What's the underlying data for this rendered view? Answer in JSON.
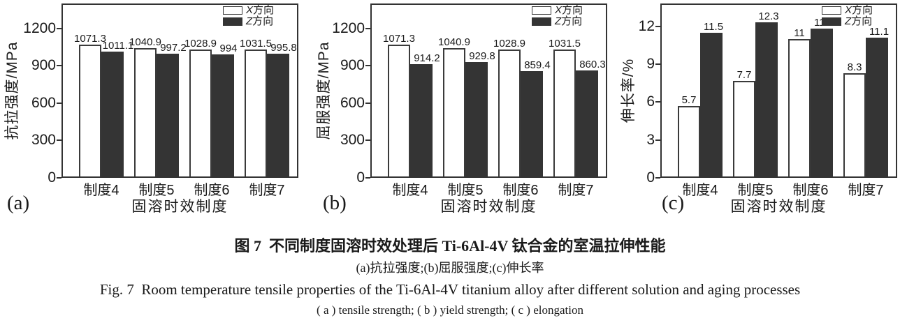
{
  "chart_data": [
    {
      "panel_label": "(a)",
      "type": "bar",
      "title": "",
      "ylabel": "抗拉强度/MPa",
      "xlabel": "固溶时效制度",
      "categories": [
        "制度4",
        "制度5",
        "制度6",
        "制度7"
      ],
      "series": [
        {
          "name": "X方向",
          "fill": "#ffffff",
          "values": [
            1071.3,
            1040.9,
            1028.9,
            1031.5
          ]
        },
        {
          "name": "Z方向",
          "fill": "#343434",
          "values": [
            1011.1,
            997.2,
            994,
            995.8
          ]
        }
      ],
      "yticks": [
        0,
        300,
        600,
        900,
        1200
      ],
      "ylim": [
        0,
        1400
      ],
      "grid": false,
      "legend_position": "top-right-inside"
    },
    {
      "panel_label": "(b)",
      "type": "bar",
      "title": "",
      "ylabel": "屈服强度/MPa",
      "xlabel": "固溶时效制度",
      "categories": [
        "制度4",
        "制度5",
        "制度6",
        "制度7"
      ],
      "series": [
        {
          "name": "X方向",
          "fill": "#ffffff",
          "values": [
            1071.3,
            1040.9,
            1028.9,
            1031.5
          ]
        },
        {
          "name": "Z方向",
          "fill": "#343434",
          "values": [
            914.2,
            929.8,
            859.4,
            860.3
          ]
        }
      ],
      "yticks": [
        0,
        300,
        600,
        900,
        1200
      ],
      "ylim": [
        0,
        1400
      ],
      "grid": false,
      "legend_position": "top-right-inside"
    },
    {
      "panel_label": "(c)",
      "type": "bar",
      "title": "",
      "ylabel": "伸长率/%",
      "xlabel": "固溶时效制度",
      "categories": [
        "制度4",
        "制度5",
        "制度6",
        "制度7"
      ],
      "series": [
        {
          "name": "X方向",
          "fill": "#ffffff",
          "values": [
            5.7,
            7.7,
            11,
            8.3
          ]
        },
        {
          "name": "Z方向",
          "fill": "#343434",
          "values": [
            11.5,
            12.3,
            11.8,
            11.1
          ]
        }
      ],
      "yticks": [
        0,
        3,
        6,
        9,
        12
      ],
      "ylim": [
        0,
        13.8
      ],
      "grid": false,
      "legend_position": "top-right-inside"
    }
  ],
  "caption": {
    "zh_title": "图 7  不同制度固溶时效处理后 Ti-6Al-4V 钛合金的室温拉伸性能",
    "zh_sub": "(a)抗拉强度;(b)屈服强度;(c)伸长率",
    "en_title": "Fig. 7  Room temperature tensile properties of the Ti-6Al-4V titanium alloy after different solution and aging processes",
    "en_sub": "( a ) tensile strength; ( b ) yield strength; ( c ) elongation"
  },
  "colors": {
    "bar_light": "#ffffff",
    "bar_dark": "#343434",
    "axis": "#333333",
    "text": "#1a1a1a",
    "background": "#ffffff"
  }
}
